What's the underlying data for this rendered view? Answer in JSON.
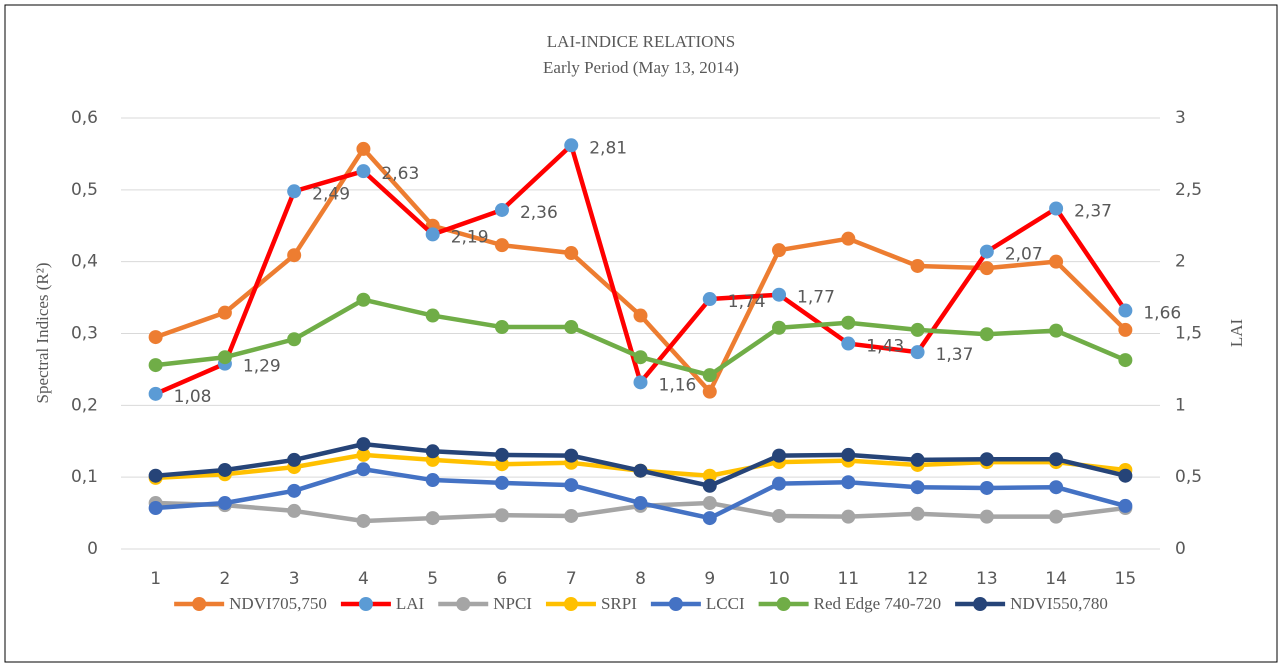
{
  "chart_data": {
    "type": "line",
    "title": "LAI-INDICE RELATIONS",
    "subtitle": "Early Period (May 13, 2014)",
    "y_label": "Spectral Indices (R²)",
    "y2_label": "LAI",
    "categories": [
      1,
      2,
      3,
      4,
      5,
      6,
      7,
      8,
      9,
      10,
      11,
      12,
      13,
      14,
      15
    ],
    "ylim": [
      0,
      0.6
    ],
    "yticks": [
      0,
      {
        "value": 0.1,
        "label": "0,1"
      },
      {
        "value": 0.2,
        "label": "0,2"
      },
      {
        "value": 0.3,
        "label": "0,3"
      },
      {
        "value": 0.4,
        "label": "0,4"
      },
      {
        "value": 0.5,
        "label": "0,5"
      },
      {
        "value": 0.6,
        "label": "0,6"
      }
    ],
    "y2lim": [
      0,
      3
    ],
    "y2ticks": [
      0,
      {
        "value": 0.5,
        "label": "0,5"
      },
      1,
      {
        "value": 1.5,
        "label": "1,5"
      },
      2,
      {
        "value": 2.5,
        "label": "2,5"
      },
      3
    ],
    "grid": true,
    "legend": "bottom",
    "series": [
      {
        "name": "NDVI705,750",
        "color": "#ED7D31",
        "values": [
          0.295,
          0.329,
          0.409,
          0.557,
          0.45,
          0.423,
          0.412,
          0.325,
          0.219,
          0.416,
          0.432,
          0.394,
          0.391,
          0.4,
          0.305
        ]
      },
      {
        "name": "LAI",
        "color": "#FF0000",
        "marker_color": "#5B9BD5",
        "axis": "y2",
        "values": [
          1.08,
          1.29,
          2.49,
          2.63,
          2.19,
          2.36,
          2.81,
          1.16,
          1.74,
          1.77,
          1.43,
          1.37,
          2.07,
          2.37,
          1.66
        ],
        "value_labels": [
          "1,08",
          "1,29",
          "2,49",
          "2,63",
          "2,19",
          "2,36",
          "2,81",
          "1,16",
          "1,74",
          "1,77",
          "1,43",
          "1,37",
          "2,07",
          "2,37",
          "1,66"
        ]
      },
      {
        "name": "NPCI",
        "color": "#A5A5A5",
        "values": [
          0.064,
          0.061,
          0.053,
          0.039,
          0.043,
          0.047,
          0.046,
          0.06,
          0.064,
          0.046,
          0.045,
          0.049,
          0.045,
          0.045,
          0.057
        ]
      },
      {
        "name": "SRPI",
        "color": "#FFC000",
        "values": [
          0.099,
          0.104,
          0.114,
          0.131,
          0.124,
          0.118,
          0.12,
          0.109,
          0.102,
          0.121,
          0.123,
          0.117,
          0.121,
          0.121,
          0.11
        ]
      },
      {
        "name": "LCCI",
        "color": "#4472C4",
        "values": [
          0.057,
          0.064,
          0.081,
          0.111,
          0.096,
          0.092,
          0.089,
          0.064,
          0.043,
          0.091,
          0.093,
          0.086,
          0.085,
          0.086,
          0.06
        ]
      },
      {
        "name": "Red Edge 740-720",
        "color": "#70AD47",
        "values": [
          0.256,
          0.267,
          0.292,
          0.347,
          0.325,
          0.309,
          0.309,
          0.267,
          0.242,
          0.308,
          0.315,
          0.305,
          0.299,
          0.304,
          0.263
        ]
      },
      {
        "name": "NDVI550,780",
        "color": "#264478",
        "values": [
          0.102,
          0.11,
          0.124,
          0.146,
          0.136,
          0.131,
          0.13,
          0.109,
          0.088,
          0.13,
          0.131,
          0.124,
          0.125,
          0.125,
          0.102
        ]
      }
    ]
  }
}
